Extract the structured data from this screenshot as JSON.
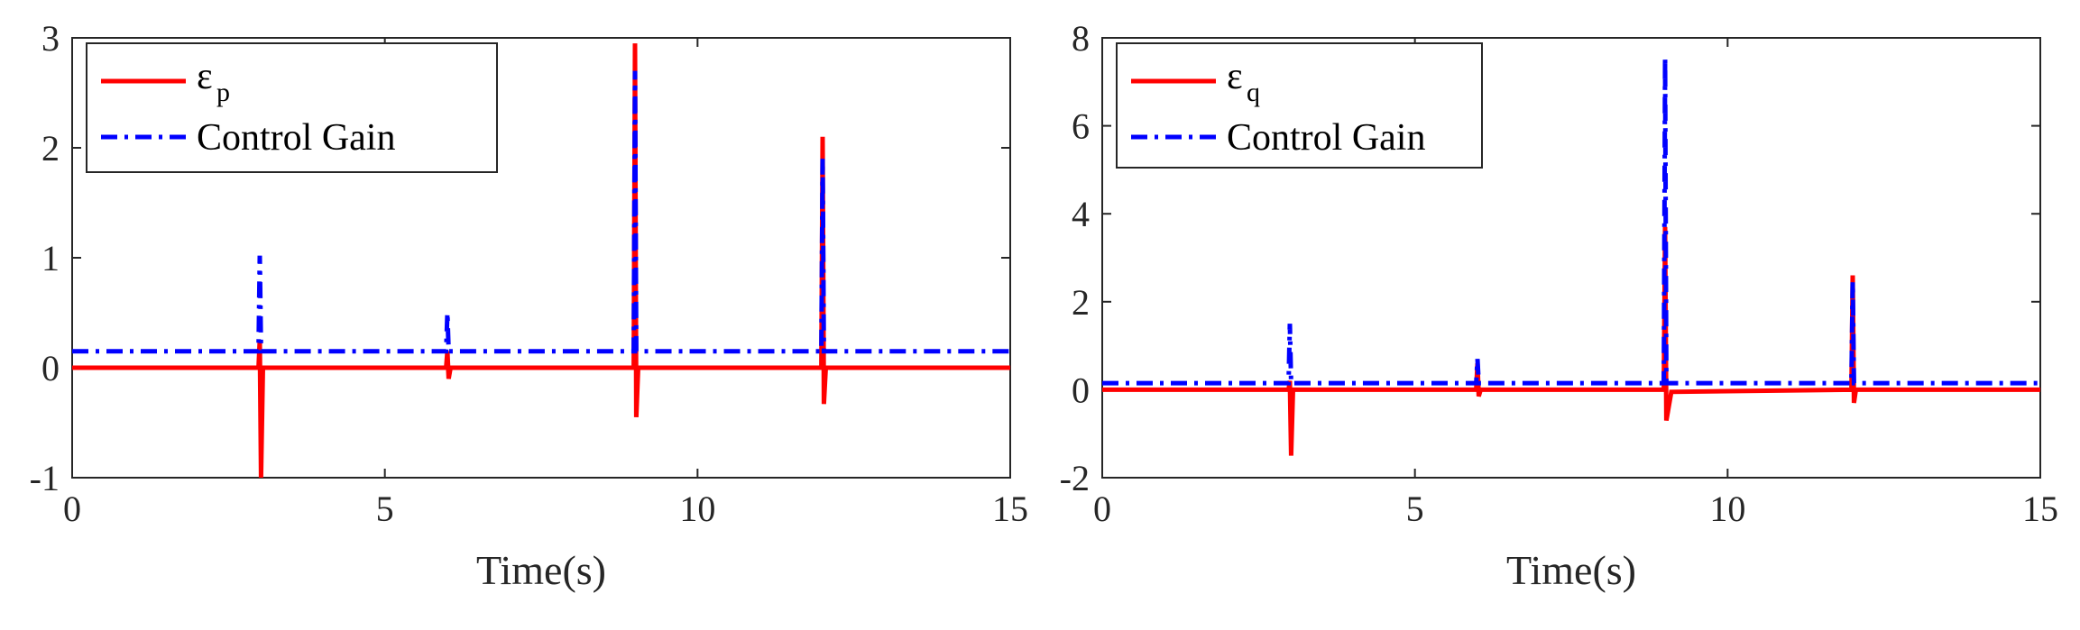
{
  "chart_data": [
    {
      "type": "line",
      "title": "",
      "xlabel": "Time(s)",
      "ylabel": "",
      "xlim": [
        0,
        15
      ],
      "ylim": [
        -1,
        3
      ],
      "xticks": [
        0,
        5,
        10,
        15
      ],
      "yticks": [
        -1,
        0,
        1,
        2,
        3
      ],
      "grid": false,
      "legend_position": "top-left",
      "series": [
        {
          "name": "ε_p",
          "legend_main": "ε",
          "legend_sub": "p",
          "style": "solid",
          "color": "#ff0000",
          "x": [
            0,
            2.98,
            3.0,
            3.02,
            3.05,
            5.98,
            6.0,
            6.02,
            6.05,
            8.98,
            9.0,
            9.02,
            9.05,
            11.98,
            12.0,
            12.02,
            12.05,
            15
          ],
          "y": [
            0,
            0,
            0.25,
            -1.0,
            0,
            0,
            0.15,
            -0.1,
            0,
            0,
            2.95,
            -0.45,
            0,
            0,
            2.1,
            -0.33,
            0,
            0
          ]
        },
        {
          "name": "Control Gain",
          "style": "dashdot",
          "color": "#0000ff",
          "x": [
            0,
            2.98,
            3.0,
            3.02,
            3.05,
            5.98,
            6.0,
            6.02,
            6.05,
            8.98,
            9.0,
            9.02,
            9.05,
            11.98,
            12.0,
            12.02,
            12.05,
            15
          ],
          "y": [
            0.15,
            0.15,
            1.02,
            0.15,
            0.15,
            0.15,
            0.5,
            0.15,
            0.15,
            0.15,
            2.7,
            0.15,
            0.15,
            0.15,
            1.9,
            0.15,
            0.15,
            0.15
          ]
        }
      ]
    },
    {
      "type": "line",
      "title": "",
      "xlabel": "Time(s)",
      "ylabel": "",
      "xlim": [
        0,
        15
      ],
      "ylim": [
        -2,
        8
      ],
      "xticks": [
        0,
        5,
        10,
        15
      ],
      "yticks": [
        -2,
        0,
        2,
        4,
        6,
        8
      ],
      "grid": false,
      "legend_position": "top-left",
      "series": [
        {
          "name": "ε_q",
          "legend_main": "ε",
          "legend_sub": "q",
          "style": "solid",
          "color": "#ff0000",
          "x": [
            0,
            2.98,
            3.0,
            3.02,
            3.05,
            5.98,
            6.0,
            6.02,
            6.05,
            8.98,
            9.0,
            9.02,
            9.1,
            11.98,
            12.0,
            12.02,
            12.05,
            15
          ],
          "y": [
            0,
            0,
            0.2,
            -1.5,
            0,
            0,
            0.6,
            -0.15,
            0,
            0,
            3.7,
            -0.7,
            -0.05,
            0,
            2.6,
            -0.3,
            0,
            0
          ]
        },
        {
          "name": "Control Gain",
          "style": "dashdot",
          "color": "#0000ff",
          "x": [
            0,
            2.98,
            3.0,
            3.02,
            3.05,
            5.98,
            6.0,
            6.02,
            6.05,
            8.98,
            9.0,
            9.02,
            9.05,
            11.98,
            12.0,
            12.02,
            12.05,
            15
          ],
          "y": [
            0.15,
            0.15,
            1.5,
            0.15,
            0.15,
            0.15,
            0.7,
            0.15,
            0.15,
            0.15,
            7.55,
            0.15,
            0.15,
            0.15,
            2.45,
            0.15,
            0.15,
            0.15
          ]
        }
      ]
    }
  ]
}
